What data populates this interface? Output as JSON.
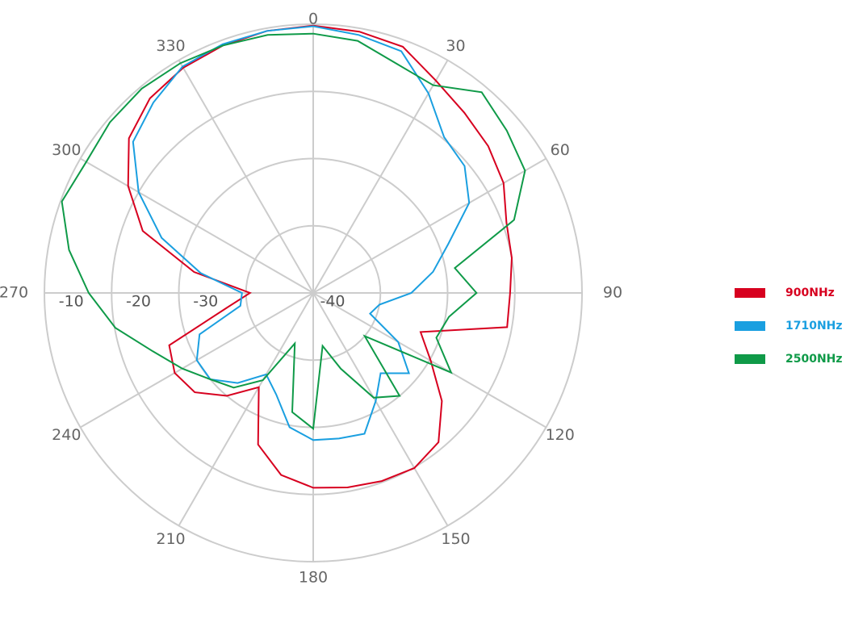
{
  "chart_data": {
    "type": "polar",
    "theta": [
      0,
      10,
      20,
      30,
      40,
      50,
      60,
      70,
      80,
      90,
      100,
      110,
      120,
      130,
      140,
      150,
      160,
      170,
      180,
      190,
      200,
      210,
      220,
      230,
      240,
      250,
      260,
      270,
      280,
      290,
      300,
      310,
      320,
      330,
      340,
      350
    ],
    "thetaticks": [
      0,
      30,
      60,
      90,
      120,
      150,
      180,
      210,
      240,
      270,
      300,
      330
    ],
    "rlim": [
      -40,
      0
    ],
    "rticks": [
      -40,
      -30,
      -20,
      -10
    ],
    "series": [
      {
        "name": "900NHz",
        "color": "#d7001f",
        "values": [
          -0.2,
          -0.5,
          -1,
          -3.5,
          -5,
          -6,
          -7.3,
          -9.4,
          -10,
          -10.7,
          -10.7,
          -23,
          -19.8,
          -15,
          -11,
          -9.9,
          -10.2,
          -10.6,
          -11,
          -12.5,
          -16,
          -23.8,
          -20,
          -17,
          -16.2,
          -17.2,
          -26.8,
          -30.6,
          -22,
          -13,
          -8.2,
          -4.2,
          -2.2,
          -1.3,
          -0.8,
          -0.4
        ]
      },
      {
        "name": "1710NHz",
        "color": "#1a9fe0",
        "values": [
          -0.3,
          -1,
          -1.7,
          -5.7,
          -9.7,
          -10.6,
          -13.2,
          -18.6,
          -21.9,
          -25.4,
          -30,
          -31,
          -25.4,
          -21.4,
          -24.4,
          -21.4,
          -17.7,
          -18,
          -18.1,
          -19.7,
          -23.9,
          -26,
          -22.5,
          -20,
          -20,
          -22,
          -29,
          -29.4,
          -23,
          -16,
          -10,
          -5,
          -3,
          -1.1,
          -0.6,
          -0.4
        ]
      },
      {
        "name": "2500NHz",
        "color": "#0f9a48",
        "values": [
          -1.4,
          -1.9,
          -3.7,
          -4.3,
          -1,
          -2.4,
          -3.6,
          -8.2,
          -18.6,
          -15.7,
          -19.5,
          -20.5,
          -16.3,
          -30,
          -20,
          -22,
          -28,
          -32,
          -19.8,
          -22,
          -32,
          -25,
          -21.6,
          -20,
          -17.5,
          -14.6,
          -10.1,
          -6.6,
          -3.1,
          -0.2,
          -1,
          -0.5,
          -0.3,
          -0.5,
          -0.8,
          -1
        ]
      }
    ]
  }
}
